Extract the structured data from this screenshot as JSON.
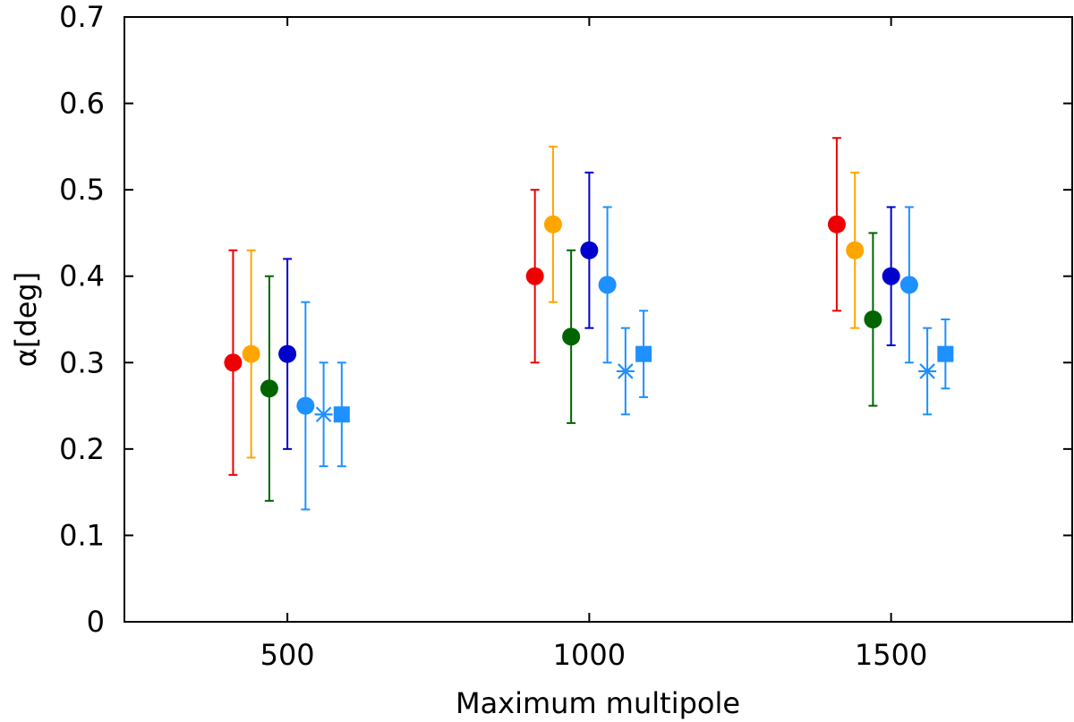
{
  "chart_data": {
    "type": "scatter",
    "title": "",
    "xlabel": "Maximum multipole",
    "ylabel": "α[deg]",
    "xlim": [
      230,
      1800
    ],
    "ylim": [
      0,
      0.7
    ],
    "xticks": [
      500,
      1000,
      1500
    ],
    "xtick_labels": [
      "500",
      "1000",
      "1500"
    ],
    "yticks": [
      0,
      0.1,
      0.2,
      0.3,
      0.4,
      0.5,
      0.6,
      0.7
    ],
    "ytick_labels": [
      "0",
      "0.1",
      "0.2",
      "0.3",
      "0.4",
      "0.5",
      "0.6",
      "0.7"
    ],
    "grid": false,
    "legend": null,
    "series": [
      {
        "name": "series-1",
        "color": "#ee0000",
        "marker": "circle",
        "points": [
          {
            "x": 410,
            "y": 0.3,
            "ylo": 0.17,
            "yhi": 0.43
          },
          {
            "x": 910,
            "y": 0.4,
            "ylo": 0.3,
            "yhi": 0.5
          },
          {
            "x": 1410,
            "y": 0.46,
            "ylo": 0.36,
            "yhi": 0.56
          }
        ]
      },
      {
        "name": "series-2",
        "color": "#ffa500",
        "marker": "circle",
        "points": [
          {
            "x": 440,
            "y": 0.31,
            "ylo": 0.19,
            "yhi": 0.43
          },
          {
            "x": 940,
            "y": 0.46,
            "ylo": 0.37,
            "yhi": 0.55
          },
          {
            "x": 1440,
            "y": 0.43,
            "ylo": 0.34,
            "yhi": 0.52
          }
        ]
      },
      {
        "name": "series-3",
        "color": "#006400",
        "marker": "circle",
        "points": [
          {
            "x": 470,
            "y": 0.27,
            "ylo": 0.14,
            "yhi": 0.4
          },
          {
            "x": 970,
            "y": 0.33,
            "ylo": 0.23,
            "yhi": 0.43
          },
          {
            "x": 1470,
            "y": 0.35,
            "ylo": 0.25,
            "yhi": 0.45
          }
        ]
      },
      {
        "name": "series-4",
        "color": "#0000cd",
        "marker": "circle",
        "points": [
          {
            "x": 500,
            "y": 0.31,
            "ylo": 0.2,
            "yhi": 0.42
          },
          {
            "x": 1000,
            "y": 0.43,
            "ylo": 0.34,
            "yhi": 0.52
          },
          {
            "x": 1500,
            "y": 0.4,
            "ylo": 0.32,
            "yhi": 0.48
          }
        ]
      },
      {
        "name": "series-5",
        "color": "#1e90ff",
        "marker": "circle",
        "points": [
          {
            "x": 530,
            "y": 0.25,
            "ylo": 0.13,
            "yhi": 0.37
          },
          {
            "x": 1030,
            "y": 0.39,
            "ylo": 0.3,
            "yhi": 0.48
          },
          {
            "x": 1530,
            "y": 0.39,
            "ylo": 0.3,
            "yhi": 0.48
          }
        ]
      },
      {
        "name": "series-6",
        "color": "#1e90ff",
        "marker": "asterisk",
        "points": [
          {
            "x": 560,
            "y": 0.24,
            "ylo": 0.18,
            "yhi": 0.3
          },
          {
            "x": 1060,
            "y": 0.29,
            "ylo": 0.24,
            "yhi": 0.34
          },
          {
            "x": 1560,
            "y": 0.29,
            "ylo": 0.24,
            "yhi": 0.34
          }
        ]
      },
      {
        "name": "series-7",
        "color": "#1e90ff",
        "marker": "square",
        "points": [
          {
            "x": 590,
            "y": 0.24,
            "ylo": 0.18,
            "yhi": 0.3
          },
          {
            "x": 1090,
            "y": 0.31,
            "ylo": 0.26,
            "yhi": 0.36
          },
          {
            "x": 1590,
            "y": 0.31,
            "ylo": 0.27,
            "yhi": 0.35
          }
        ]
      }
    ]
  }
}
